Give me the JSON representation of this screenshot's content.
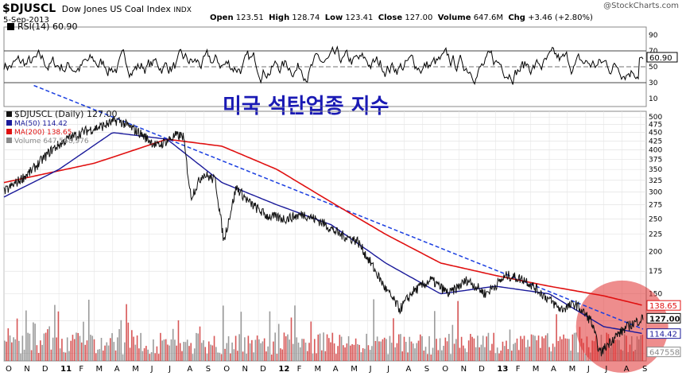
{
  "header": {
    "symbol": "$DJUSCL",
    "name": "Dow Jones US Coal Index",
    "exchange": "INDX",
    "date": "5-Sep-2013",
    "open_label": "Open",
    "open": "123.51",
    "high_label": "High",
    "high": "128.74",
    "low_label": "Low",
    "low": "123.41",
    "close_label": "Close",
    "close": "127.00",
    "volume_label": "Volume",
    "volume": "647.6M",
    "chg_label": "Chg",
    "chg": "+3.46 (+2.80%)",
    "watermark": "@StockCharts.com",
    "overlay_text": "미국 석탄업종 지수"
  },
  "colors": {
    "price": "#111111",
    "ma50": "#1a1a9a",
    "ma200": "#e01010",
    "rsi": "#000000",
    "trendline": "#1a3ee0",
    "volume_up": "#d03838",
    "volume_down": "#8a8a8a",
    "highlight": "#e03030",
    "overlay_text": "#1a1ab4"
  },
  "chart_data": [
    {
      "type": "line",
      "title": "RSI(14) 60.90",
      "ylim": [
        0,
        100
      ],
      "ticks": [
        10,
        30,
        50,
        70,
        90
      ],
      "reference_lines": [
        30,
        50,
        70
      ],
      "last_value": 60.9,
      "last_value_label": "60.90",
      "x": [
        "2012-10-01",
        "2013-01-01",
        "2013-04-01",
        "2013-07-01",
        "2013-09-05"
      ],
      "series": [
        {
          "name": "RSI(14)",
          "values": [
            58,
            62,
            50,
            45,
            60.9
          ]
        }
      ]
    },
    {
      "type": "line",
      "legend": [
        {
          "label": "$DJUSCL (Daily) 127.00",
          "color_key": "price"
        },
        {
          "label": "MA(50) 114.42",
          "color_key": "ma50"
        },
        {
          "label": "MA(200) 138.65",
          "color_key": "ma200"
        },
        {
          "label": "Volume 647,558,976",
          "color_key": "volume_down"
        }
      ],
      "scale": "log",
      "ylim": [
        95,
        520
      ],
      "y_ticks": [
        100,
        125,
        150,
        175,
        200,
        225,
        250,
        275,
        300,
        325,
        350,
        375,
        400,
        425,
        450,
        475,
        500
      ],
      "x_months": [
        "O",
        "N",
        "D",
        "11",
        "F",
        "M",
        "A",
        "M",
        "J",
        "J",
        "A",
        "S",
        "O",
        "N",
        "D",
        "12",
        "F",
        "M",
        "A",
        "M",
        "J",
        "J",
        "A",
        "S",
        "O",
        "N",
        "D",
        "13",
        "F",
        "M",
        "A",
        "M",
        "J",
        "J",
        "A",
        "S"
      ],
      "x_start": "2010-10-01",
      "x_end": "2013-09-05",
      "price_keypoints": [
        {
          "date": "2010-10-01",
          "value": 300
        },
        {
          "date": "2010-11-15",
          "value": 345
        },
        {
          "date": "2010-12-20",
          "value": 400
        },
        {
          "date": "2011-01-15",
          "value": 430
        },
        {
          "date": "2011-02-15",
          "value": 455
        },
        {
          "date": "2011-03-15",
          "value": 470
        },
        {
          "date": "2011-04-10",
          "value": 490
        },
        {
          "date": "2011-05-15",
          "value": 450
        },
        {
          "date": "2011-06-15",
          "value": 410
        },
        {
          "date": "2011-07-15",
          "value": 440
        },
        {
          "date": "2011-07-28",
          "value": 440
        },
        {
          "date": "2011-08-10",
          "value": 290
        },
        {
          "date": "2011-08-30",
          "value": 340
        },
        {
          "date": "2011-09-20",
          "value": 325
        },
        {
          "date": "2011-10-04",
          "value": 215
        },
        {
          "date": "2011-10-25",
          "value": 310
        },
        {
          "date": "2011-11-15",
          "value": 280
        },
        {
          "date": "2011-12-15",
          "value": 255
        },
        {
          "date": "2012-01-15",
          "value": 250
        },
        {
          "date": "2012-02-15",
          "value": 258
        },
        {
          "date": "2012-03-15",
          "value": 245
        },
        {
          "date": "2012-04-15",
          "value": 225
        },
        {
          "date": "2012-05-15",
          "value": 215
        },
        {
          "date": "2012-06-10",
          "value": 180
        },
        {
          "date": "2012-07-01",
          "value": 155
        },
        {
          "date": "2012-07-25",
          "value": 135
        },
        {
          "date": "2012-08-15",
          "value": 152
        },
        {
          "date": "2012-09-15",
          "value": 165
        },
        {
          "date": "2012-10-15",
          "value": 150
        },
        {
          "date": "2012-11-15",
          "value": 165
        },
        {
          "date": "2012-12-15",
          "value": 150
        },
        {
          "date": "2013-01-20",
          "value": 170
        },
        {
          "date": "2013-02-20",
          "value": 165
        },
        {
          "date": "2013-03-20",
          "value": 150
        },
        {
          "date": "2013-04-20",
          "value": 135
        },
        {
          "date": "2013-05-15",
          "value": 140
        },
        {
          "date": "2013-06-10",
          "value": 125
        },
        {
          "date": "2013-06-25",
          "value": 100
        },
        {
          "date": "2013-07-15",
          "value": 110
        },
        {
          "date": "2013-08-10",
          "value": 120
        },
        {
          "date": "2013-09-05",
          "value": 127
        }
      ],
      "ma50_keypoints": [
        {
          "date": "2010-10-01",
          "value": 290
        },
        {
          "date": "2011-01-01",
          "value": 350
        },
        {
          "date": "2011-04-01",
          "value": 450
        },
        {
          "date": "2011-07-01",
          "value": 430
        },
        {
          "date": "2011-10-01",
          "value": 320
        },
        {
          "date": "2012-01-01",
          "value": 275
        },
        {
          "date": "2012-04-01",
          "value": 240
        },
        {
          "date": "2012-07-01",
          "value": 185
        },
        {
          "date": "2012-10-01",
          "value": 150
        },
        {
          "date": "2013-01-01",
          "value": 158
        },
        {
          "date": "2013-04-01",
          "value": 150
        },
        {
          "date": "2013-07-01",
          "value": 120
        },
        {
          "date": "2013-09-05",
          "value": 114.42
        }
      ],
      "ma200_keypoints": [
        {
          "date": "2010-10-01",
          "value": 320
        },
        {
          "date": "2011-03-01",
          "value": 365
        },
        {
          "date": "2011-07-01",
          "value": 430
        },
        {
          "date": "2011-10-01",
          "value": 410
        },
        {
          "date": "2012-01-01",
          "value": 350
        },
        {
          "date": "2012-04-01",
          "value": 280
        },
        {
          "date": "2012-07-01",
          "value": 225
        },
        {
          "date": "2012-10-01",
          "value": 185
        },
        {
          "date": "2013-01-01",
          "value": 170
        },
        {
          "date": "2013-04-01",
          "value": 158
        },
        {
          "date": "2013-07-01",
          "value": 148
        },
        {
          "date": "2013-09-05",
          "value": 138.65
        }
      ],
      "trendline": [
        {
          "date": "2010-11-20",
          "value": 620
        },
        {
          "date": "2013-09-05",
          "value": 118
        }
      ],
      "last_value_labels": [
        {
          "label": "138.65",
          "value": 138.65,
          "color_key": "ma200"
        },
        {
          "label": "127.00",
          "value": 127.0,
          "color_key": "price"
        },
        {
          "label": "114.42",
          "value": 114.42,
          "color_key": "ma50"
        },
        {
          "label": "647558",
          "value": 101,
          "color_key": "volume_down"
        }
      ],
      "highlight": {
        "date": "2013-08-01",
        "value": 120
      }
    }
  ]
}
